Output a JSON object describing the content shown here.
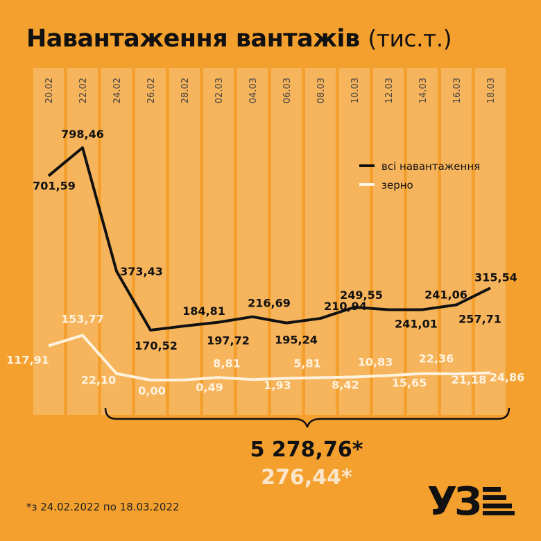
{
  "title": {
    "main": "Навантаження вантажів",
    "unit": "(тис.т.)"
  },
  "footnote": "*з 24.02.2022 по 18.03.2022",
  "logo": {
    "text": "УЗ"
  },
  "colors": {
    "background": "#F4A02E",
    "stripe": "#F6B45C",
    "all_cargo": "#111111",
    "grain": "#FFF3E0",
    "total_grain_text": "#FBE6CB"
  },
  "chart_data": {
    "type": "line",
    "x": [
      "20.02",
      "22.02",
      "24.02",
      "26.02",
      "28.02",
      "02.03",
      "04.03",
      "06.03",
      "08.03",
      "10.03",
      "12.03",
      "14.03",
      "16.03",
      "18.03"
    ],
    "series": [
      {
        "name": "всі навантаження",
        "values": [
          701.59,
          798.46,
          373.43,
          170.52,
          184.81,
          197.72,
          216.69,
          195.24,
          210.94,
          249.55,
          241.01,
          241.06,
          257.71,
          315.54
        ],
        "labels": [
          "701,59",
          "798,46",
          "373,43",
          "170,52",
          "184,81",
          "197,72",
          "216,69",
          "195,24",
          "210,94",
          "249,55",
          "241,01",
          "241,06",
          "257,71",
          "315,54"
        ]
      },
      {
        "name": "зерно",
        "values": [
          117.91,
          153.77,
          22.1,
          0.0,
          0.49,
          8.81,
          1.93,
          5.81,
          8.42,
          10.83,
          15.65,
          22.36,
          21.18,
          24.86
        ],
        "labels": [
          "117,91",
          "153,77",
          "22,10",
          "0,00",
          "0,49",
          "8,81",
          "1,93",
          "5,81",
          "8,42",
          "10,83",
          "15,65",
          "22,36",
          "21,18",
          "24,86"
        ]
      }
    ],
    "legend_position": "top-right",
    "totals": {
      "all": "5 278,76*",
      "grain": "276,44*"
    }
  }
}
